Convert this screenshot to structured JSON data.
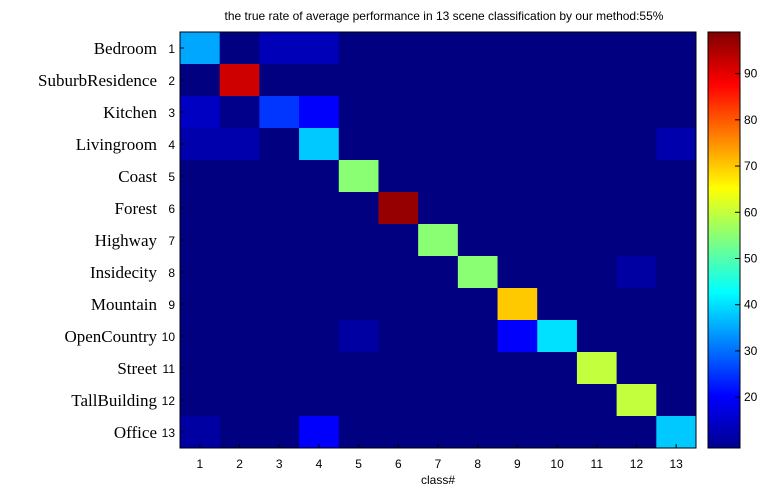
{
  "chart_data": {
    "type": "heatmap",
    "title": "the true rate of average performance in 13 scene classification by our method:55%",
    "xlabel": "class#",
    "ylabel": "",
    "row_labels": [
      "Bedroom",
      "SuburbResidence",
      "Kitchen",
      "Livingroom",
      "Coast",
      "Forest",
      "Highway",
      "Insidecity",
      "Mountain",
      "OpenCountry",
      "Street",
      "TallBuilding",
      "Office"
    ],
    "row_ticks": [
      "1",
      "2",
      "3",
      "4",
      "5",
      "6",
      "7",
      "8",
      "9",
      "10",
      "11",
      "12",
      "13"
    ],
    "col_ticks": [
      "1",
      "2",
      "3",
      "4",
      "5",
      "6",
      "7",
      "8",
      "9",
      "10",
      "11",
      "12",
      "13"
    ],
    "matrix": [
      [
        35,
        9,
        14,
        14,
        9,
        9,
        9,
        9,
        9,
        9,
        9,
        9,
        9
      ],
      [
        9,
        92,
        9,
        9,
        9,
        9,
        9,
        9,
        9,
        9,
        9,
        9,
        9
      ],
      [
        15,
        10,
        25,
        20,
        9,
        9,
        9,
        9,
        9,
        9,
        9,
        9,
        9
      ],
      [
        13,
        13,
        9,
        38,
        9,
        9,
        9,
        9,
        9,
        9,
        9,
        9,
        13
      ],
      [
        9,
        9,
        9,
        9,
        55,
        9,
        9,
        9,
        9,
        9,
        9,
        9,
        9
      ],
      [
        9,
        9,
        9,
        9,
        9,
        97,
        9,
        9,
        9,
        9,
        9,
        9,
        9
      ],
      [
        9,
        9,
        9,
        9,
        9,
        9,
        55,
        9,
        9,
        9,
        9,
        9,
        9
      ],
      [
        9,
        9,
        9,
        9,
        9,
        9,
        9,
        55,
        9,
        9,
        9,
        12,
        9
      ],
      [
        9,
        9,
        9,
        9,
        9,
        9,
        9,
        9,
        70,
        9,
        9,
        9,
        9
      ],
      [
        9,
        9,
        9,
        9,
        12,
        9,
        9,
        9,
        20,
        40,
        9,
        9,
        9
      ],
      [
        9,
        9,
        9,
        9,
        9,
        9,
        9,
        9,
        9,
        9,
        60,
        9,
        9
      ],
      [
        9,
        9,
        9,
        9,
        9,
        9,
        9,
        9,
        9,
        9,
        9,
        60,
        9
      ],
      [
        12,
        9,
        9,
        20,
        9,
        9,
        9,
        9,
        9,
        9,
        9,
        9,
        38
      ]
    ],
    "colorbar": {
      "range": [
        9,
        99
      ],
      "ticks": [
        20,
        30,
        40,
        50,
        60,
        70,
        80,
        90
      ],
      "colormap": "jet"
    },
    "grid": false
  }
}
